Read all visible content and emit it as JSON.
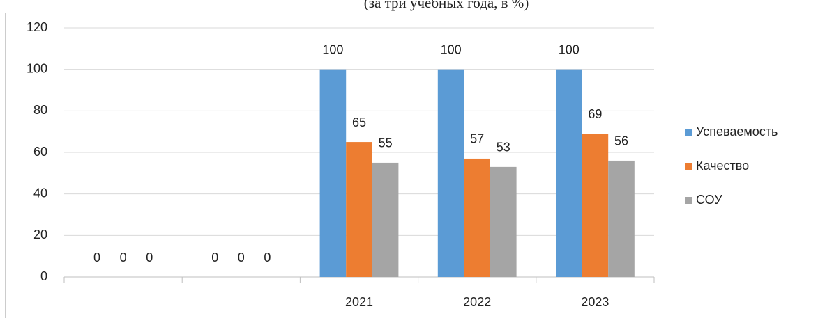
{
  "chart_data": {
    "type": "bar",
    "subtitle": "(за три учебных года, в %)",
    "categories": [
      null,
      null,
      "2021",
      "2022",
      "2023"
    ],
    "series": [
      {
        "name": "Успеваемость",
        "color": "#5b9bd5",
        "values": [
          0,
          0,
          100,
          100,
          100
        ]
      },
      {
        "name": "Качество",
        "color": "#ed7d31",
        "values": [
          0,
          0,
          65,
          57,
          69
        ]
      },
      {
        "name": "СОУ",
        "color": "#a5a5a5",
        "values": [
          0,
          0,
          55,
          53,
          56
        ]
      }
    ],
    "ylim": [
      0,
      120
    ],
    "yticks": [
      0,
      20,
      40,
      60,
      80,
      100,
      120
    ],
    "grid": true,
    "legend": "right"
  }
}
